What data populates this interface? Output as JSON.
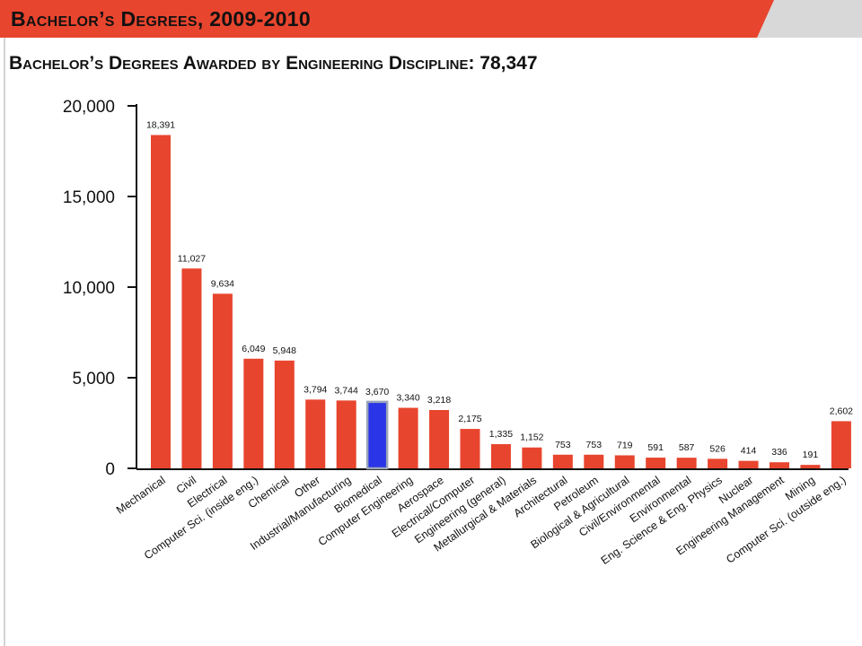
{
  "slide": {
    "title": "Bachelor’s Degrees, 2009-2010"
  },
  "colors": {
    "banner": "#e8452e",
    "bar": "#e8452e",
    "highlight_bar": "#2a35e8",
    "highlight_border": "#9aa6b8"
  },
  "chart_data": {
    "type": "bar",
    "title": "Bachelor’s Degrees Awarded by Engineering Discipline: 78,347",
    "xlabel": "",
    "ylabel": "",
    "ylim": [
      0,
      20000
    ],
    "yticks": [
      0,
      5000,
      10000,
      15000,
      20000
    ],
    "ytick_labels": [
      "0",
      "5,000",
      "10,000",
      "15,000",
      "20,000"
    ],
    "grid": false,
    "highlight_category": "Biomedical",
    "categories": [
      "Mechanical",
      "Civil",
      "Electrical",
      "Computer Sci. (inside eng.)",
      "Chemical",
      "Other",
      "Industrial/Manufacturing",
      "Biomedical",
      "Computer Engineering",
      "Aerospace",
      "Electrical/Computer",
      "Engineering (general)",
      "Metallurgical & Materials",
      "Architectural",
      "Petroleum",
      "Biological & Agricultural",
      "Civil/Environmental",
      "Environmental",
      "Eng. Science & Eng. Physics",
      "Nuclear",
      "Engineering Management",
      "Mining",
      "Computer Sci. (outside eng.)"
    ],
    "values": [
      18391,
      11027,
      9634,
      6049,
      5948,
      3794,
      3744,
      3670,
      3340,
      3218,
      2175,
      1335,
      1152,
      753,
      753,
      719,
      591,
      587,
      526,
      414,
      336,
      191,
      2602
    ],
    "value_labels": [
      "18,391",
      "11,027",
      "9,634",
      "6,049",
      "5,948",
      "3,794",
      "3,744",
      "3,670",
      "3,340",
      "3,218",
      "2,175",
      "1,335",
      "1,152",
      "753",
      "753",
      "719",
      "591",
      "587",
      "526",
      "414",
      "336",
      "191",
      "2,602"
    ]
  }
}
